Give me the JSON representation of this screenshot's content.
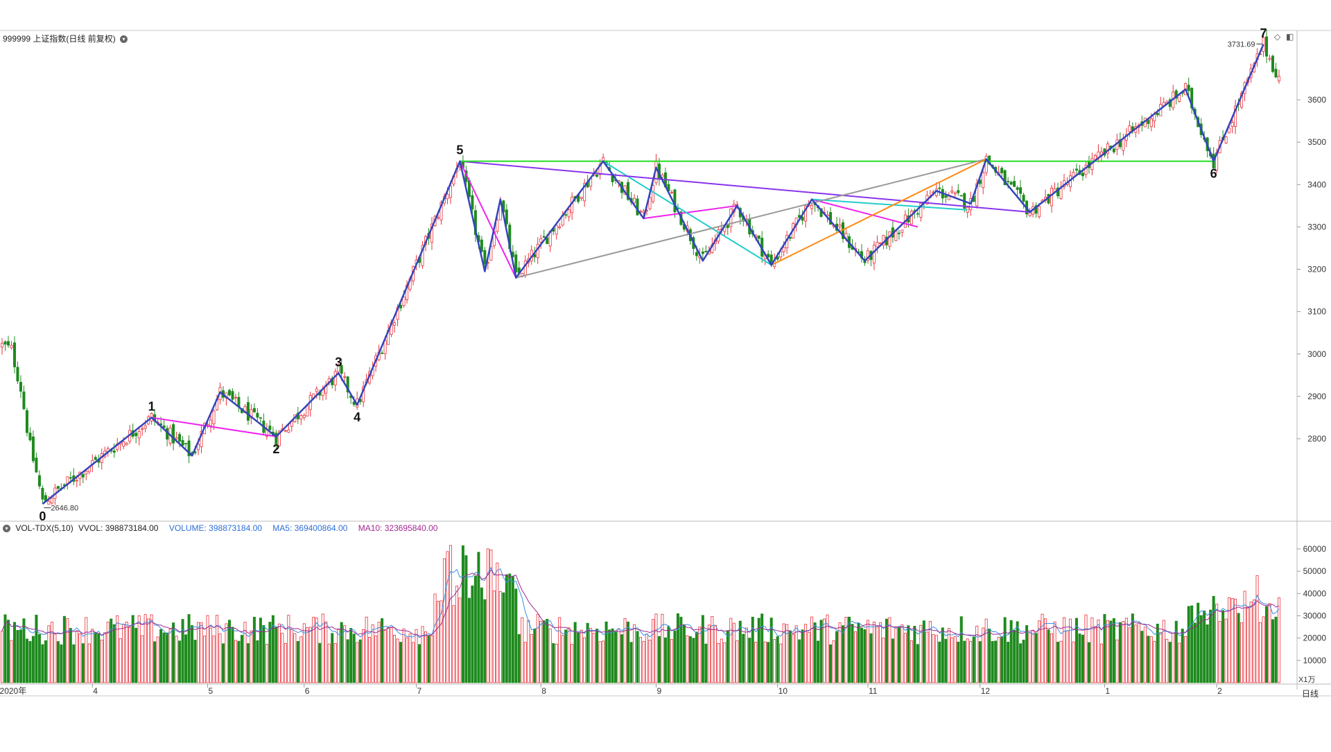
{
  "header": {
    "price_title": "999999 上证指数(日线 前复权)",
    "vol_indicator": "VOL-TDX(5,10)",
    "vvol": "VVOL: 398873184.00",
    "volume": "VOLUME: 398873184.00",
    "ma5": "MA5: 369400864.00",
    "ma10": "MA10: 323695840.00",
    "period_tab": "日线",
    "unit_label": "X1万"
  },
  "icons": [
    "dropdown-circle-icon",
    "diamond-icon",
    "panel-toggle-icon"
  ],
  "colors": {
    "up": "#e8303a",
    "down": "#1e8a1e",
    "wave": "#3344bb",
    "magenta": "#ee22ee",
    "cyan": "#22cccc",
    "purple": "#8833ee",
    "green_line": "#22dd22",
    "gray": "#999999",
    "orange": "#ff8811",
    "vol_line": "#2e6fd8",
    "ma5": "#3a8ee0",
    "ma10": "#a02890"
  },
  "chart_data": [
    {
      "type": "candlestick",
      "title": "999999 上证指数(日线 前复权)",
      "ylim": [
        2600,
        3760
      ],
      "y_ticks": [
        2800,
        2900,
        3000,
        3100,
        3200,
        3300,
        3400,
        3500,
        3600
      ],
      "x_tick_labels": [
        "2020年",
        "4",
        "5",
        "6",
        "7",
        "8",
        "9",
        "10",
        "11",
        "12",
        "1",
        "2"
      ],
      "annotations": [
        {
          "text": "2646.80",
          "kind": "low"
        },
        {
          "text": "3731.69",
          "kind": "high"
        }
      ],
      "wave_labels": [
        {
          "text": "0",
          "idx": 13,
          "price": 2646
        },
        {
          "text": "1",
          "idx": 48,
          "price": 2850
        },
        {
          "text": "2",
          "idx": 88,
          "price": 2805
        },
        {
          "text": "3",
          "idx": 108,
          "price": 2955
        },
        {
          "text": "4",
          "idx": 114,
          "price": 2880
        },
        {
          "text": "5",
          "idx": 147,
          "price": 3455
        },
        {
          "text": "6",
          "idx": 389,
          "price": 3455
        },
        {
          "text": "7",
          "idx": 405,
          "price": 3731
        }
      ],
      "wave_main": [
        [
          13,
          2646
        ],
        [
          48,
          2850
        ],
        [
          61,
          2760
        ],
        [
          70,
          2910
        ],
        [
          88,
          2805
        ],
        [
          108,
          2955
        ],
        [
          114,
          2880
        ],
        [
          147,
          3455
        ],
        [
          155,
          3195
        ],
        [
          160,
          3365
        ],
        [
          165,
          3180
        ],
        [
          193,
          3455
        ],
        [
          206,
          3320
        ],
        [
          210,
          3440
        ],
        [
          225,
          3220
        ],
        [
          236,
          3350
        ],
        [
          247,
          3210
        ],
        [
          260,
          3365
        ],
        [
          277,
          3220
        ],
        [
          300,
          3385
        ],
        [
          311,
          3355
        ],
        [
          316,
          3460
        ],
        [
          330,
          3335
        ],
        [
          380,
          3625
        ],
        [
          389,
          3455
        ],
        [
          405,
          3731
        ]
      ],
      "overlay_lines": [
        {
          "color": "magenta",
          "points": [
            [
              48,
              2850
            ],
            [
              88,
              2805
            ]
          ]
        },
        {
          "color": "magenta",
          "points": [
            [
              147,
              3455
            ],
            [
              165,
              3180
            ]
          ]
        },
        {
          "color": "magenta",
          "points": [
            [
              206,
              3320
            ],
            [
              236,
              3350
            ]
          ]
        },
        {
          "color": "magenta",
          "points": [
            [
              260,
              3365
            ],
            [
              294,
              3300
            ]
          ]
        },
        {
          "color": "cyan",
          "points": [
            [
              193,
              3455
            ],
            [
              247,
              3210
            ]
          ]
        },
        {
          "color": "cyan",
          "points": [
            [
              260,
              3365
            ],
            [
              310,
              3340
            ]
          ]
        },
        {
          "color": "purple",
          "points": [
            [
              147,
              3455
            ],
            [
              330,
              3335
            ]
          ]
        },
        {
          "color": "green_line",
          "points": [
            [
              147,
              3455
            ],
            [
              389,
              3455
            ]
          ]
        },
        {
          "color": "gray",
          "points": [
            [
              165,
              3180
            ],
            [
              316,
              3460
            ]
          ]
        },
        {
          "color": "orange",
          "points": [
            [
              247,
              3210
            ],
            [
              316,
              3460
            ]
          ]
        }
      ]
    },
    {
      "type": "bar",
      "title": "VOL-TDX(5,10)",
      "ylim": [
        0,
        65000
      ],
      "y_ticks": [
        10000,
        20000,
        30000,
        40000,
        50000,
        60000
      ],
      "unit": "X1万",
      "series": [
        {
          "name": "VOLUME",
          "values": "one bar per trading day, 411 days"
        },
        {
          "name": "MA5",
          "color": "ma5"
        },
        {
          "name": "MA10",
          "color": "ma10"
        }
      ]
    }
  ]
}
